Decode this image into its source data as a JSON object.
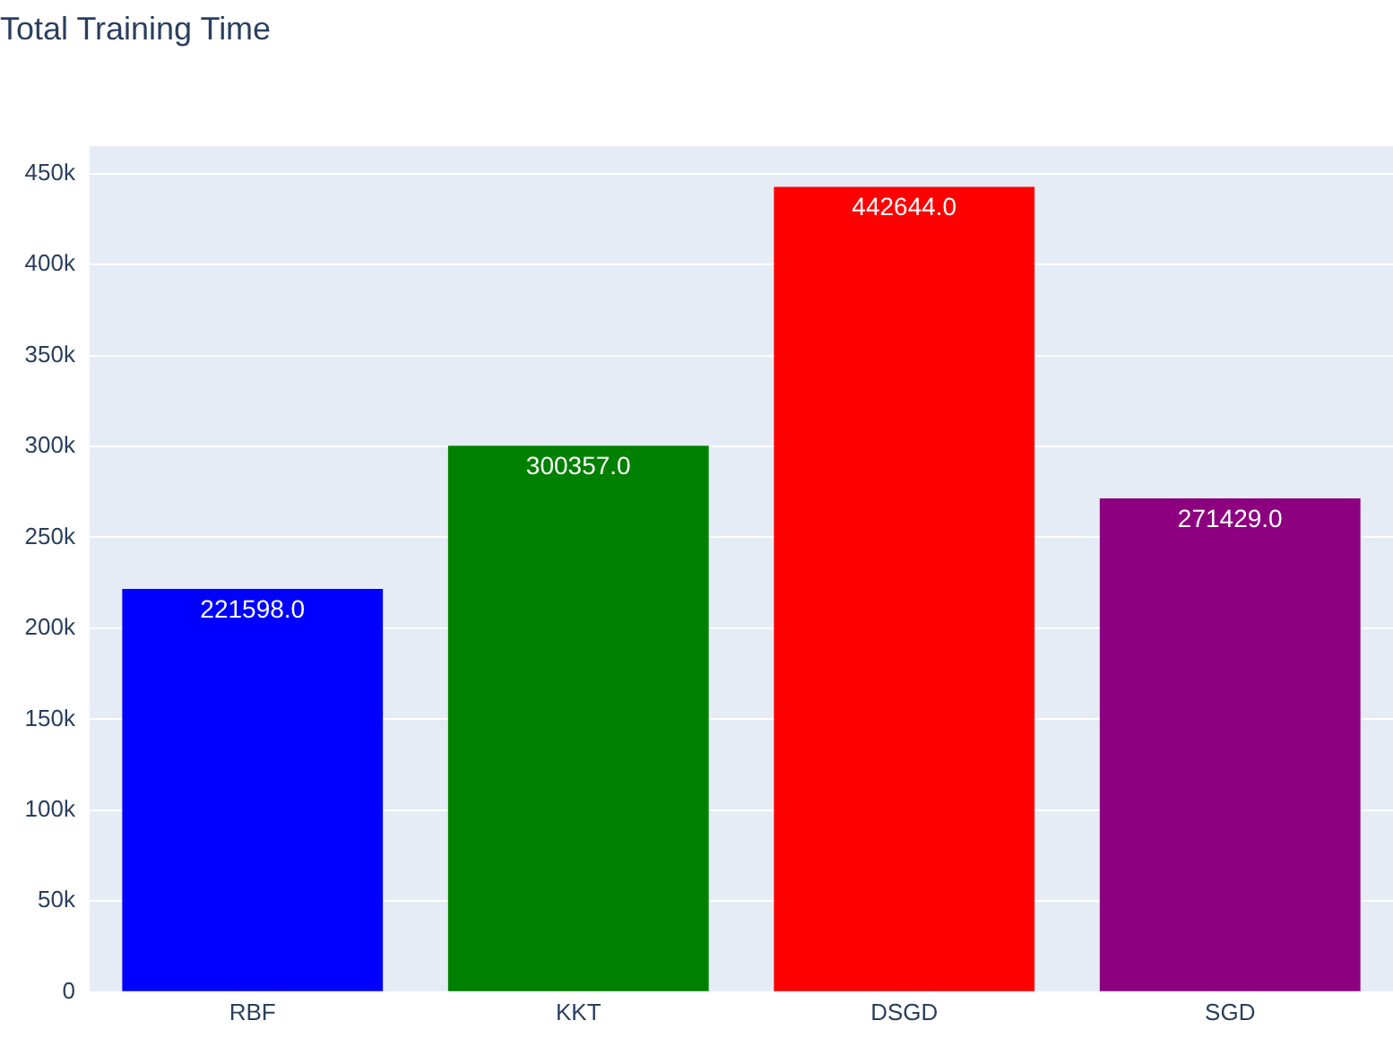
{
  "chart_data": {
    "type": "bar",
    "title": "Total Training Time",
    "categories": [
      "RBF",
      "KKT",
      "DSGD",
      "SGD"
    ],
    "values": [
      221598,
      300357,
      442644,
      271429
    ],
    "colors": [
      "#0000ff",
      "#008000",
      "#ff0000",
      "#8c0080"
    ],
    "value_labels": [
      "221598.0",
      "300357.0",
      "442644.0",
      "271429.0"
    ],
    "ylim": [
      0,
      465000
    ],
    "yticks": [
      {
        "value": 0,
        "label": "0"
      },
      {
        "value": 50000,
        "label": "50k"
      },
      {
        "value": 100000,
        "label": "100k"
      },
      {
        "value": 150000,
        "label": "150k"
      },
      {
        "value": 200000,
        "label": "200k"
      },
      {
        "value": 250000,
        "label": "250k"
      },
      {
        "value": 300000,
        "label": "300k"
      },
      {
        "value": 350000,
        "label": "350k"
      },
      {
        "value": 400000,
        "label": "400k"
      },
      {
        "value": 450000,
        "label": "450k"
      }
    ],
    "grid": "y"
  }
}
